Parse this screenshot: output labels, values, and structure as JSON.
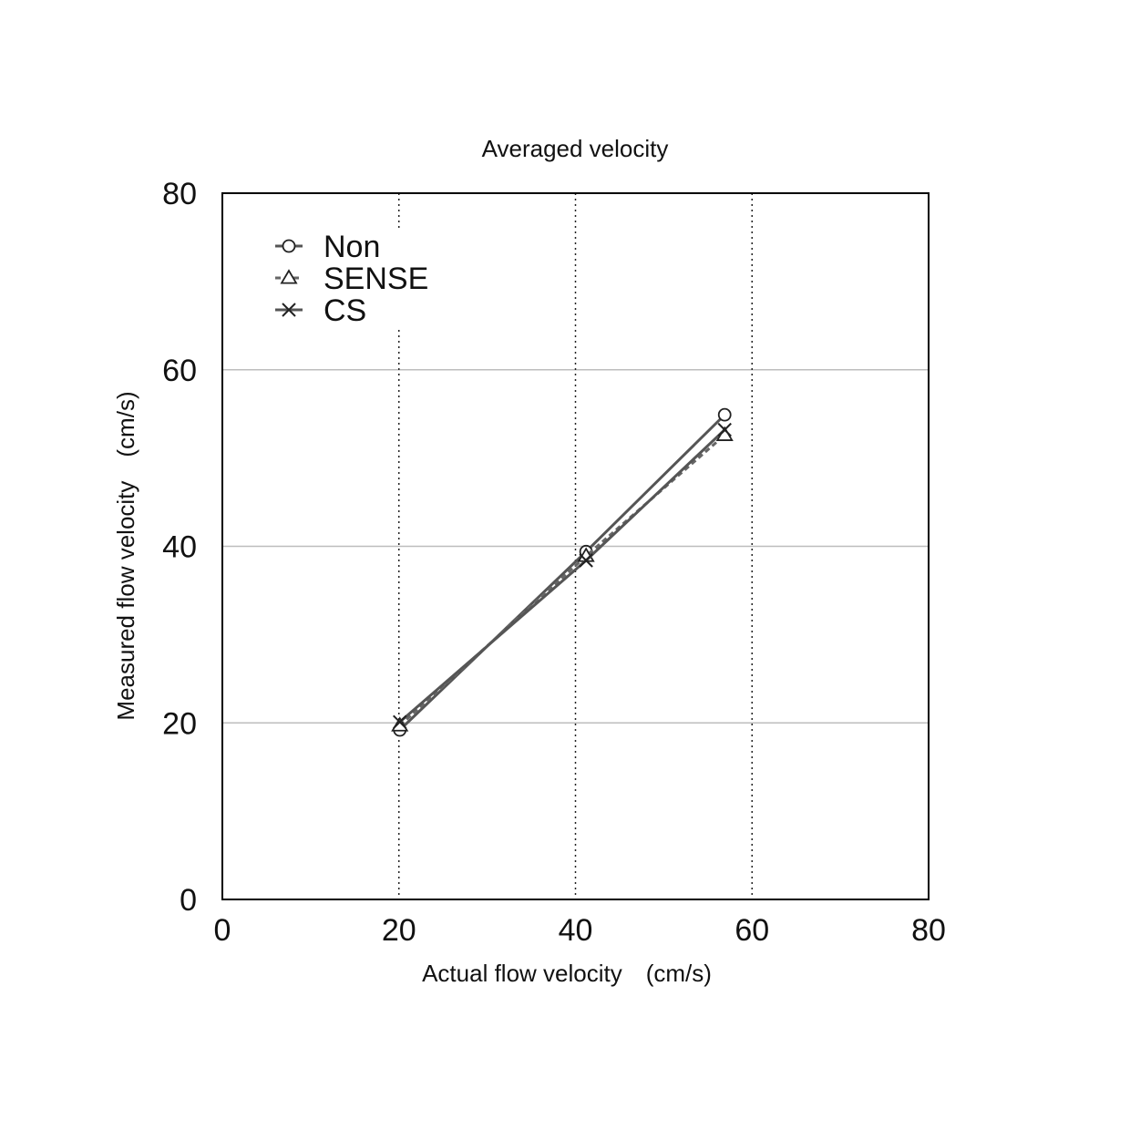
{
  "chart_data": {
    "type": "line",
    "title": "Averaged velocity",
    "xlabel": "Actual flow velocity　(cm/s)",
    "ylabel": "Measured flow velocity　(cm/s)",
    "xlim": [
      0,
      80
    ],
    "ylim": [
      0,
      80
    ],
    "xticks": [
      0,
      20,
      40,
      60,
      80
    ],
    "yticks": [
      0,
      20,
      40,
      60,
      80
    ],
    "grid": {
      "vertical": "dotted at 20, 40, 60",
      "horizontal": "solid light gray at 20, 40, 60"
    },
    "legend_position": "top-left",
    "series": [
      {
        "name": "Non",
        "marker": "circle",
        "line": "solid",
        "color": "#555555",
        "x": [
          20.1,
          41.2,
          56.9
        ],
        "y": [
          19.2,
          39.4,
          54.9
        ]
      },
      {
        "name": "SENSE",
        "marker": "triangle",
        "line": "dashed",
        "color": "#666666",
        "x": [
          20.1,
          41.2,
          56.9
        ],
        "y": [
          19.7,
          38.9,
          52.6
        ]
      },
      {
        "name": "CS",
        "marker": "cross",
        "line": "solid",
        "color": "#555555",
        "x": [
          20.1,
          41.2,
          56.9
        ],
        "y": [
          20.1,
          38.4,
          53.2
        ]
      }
    ]
  }
}
